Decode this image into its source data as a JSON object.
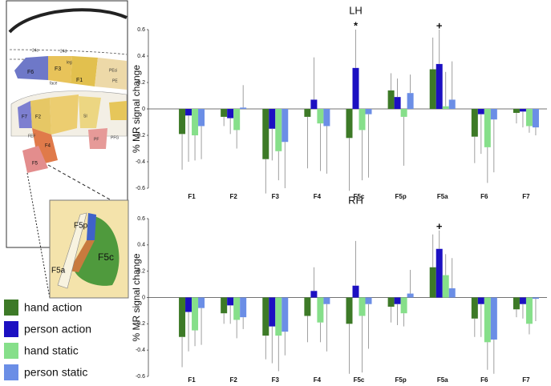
{
  "chart_data": [
    {
      "type": "bar",
      "title": "LH",
      "y_label": "% MR signal change",
      "categories": [
        "F1",
        "F2",
        "F3",
        "F4",
        "F5c",
        "F5p",
        "F5a",
        "F6",
        "F7"
      ],
      "ylim": [
        -0.6,
        0.6
      ],
      "yticks": [
        0.6,
        0.4,
        0.2,
        0,
        -0.2,
        -0.4,
        -0.6
      ],
      "series": [
        {
          "name": "hand action",
          "color": "#3d7a27",
          "values": [
            -0.19,
            -0.06,
            -0.38,
            -0.06,
            -0.22,
            0.14,
            0.3,
            -0.21,
            -0.03
          ],
          "errors": [
            0.27,
            0.07,
            0.26,
            0.39,
            0.4,
            0.13,
            0.24,
            0.2,
            0.08
          ]
        },
        {
          "name": "person action",
          "color": "#1c10c2",
          "values": [
            -0.05,
            -0.07,
            -0.15,
            0.07,
            0.31,
            0.09,
            0.34,
            -0.04,
            -0.02
          ],
          "errors": [
            0.35,
            0.12,
            0.24,
            0.32,
            0.29,
            0.14,
            0.26,
            0.3,
            0.12
          ]
        },
        {
          "name": "hand static",
          "color": "#86df8a",
          "values": [
            -0.2,
            -0.16,
            -0.32,
            -0.11,
            -0.16,
            -0.06,
            0.02,
            -0.29,
            -0.13
          ],
          "errors": [
            0.19,
            0.14,
            0.22,
            0.36,
            0.38,
            0.37,
            0.26,
            0.27,
            0.05
          ]
        },
        {
          "name": "person static",
          "color": "#6b8ee6",
          "values": [
            -0.13,
            0.01,
            -0.25,
            -0.13,
            -0.04,
            0.12,
            0.07,
            -0.08,
            -0.14
          ],
          "errors": [
            0.25,
            0.17,
            0.35,
            0.36,
            0.48,
            0.14,
            0.29,
            0.4,
            0.06
          ]
        }
      ],
      "annotations": [
        {
          "text": "*",
          "x": "F5c"
        },
        {
          "text": "+",
          "x": "F5a"
        }
      ]
    },
    {
      "type": "bar",
      "title": "RH",
      "y_label": "% MR signal change",
      "categories": [
        "F1",
        "F2",
        "F3",
        "F4",
        "F5c",
        "F5p",
        "F5a",
        "F6",
        "F7"
      ],
      "ylim": [
        -0.6,
        0.6
      ],
      "yticks": [
        0.6,
        0.4,
        0.2,
        0,
        -0.2,
        -0.4,
        -0.6
      ],
      "series": [
        {
          "name": "hand action",
          "color": "#3d7a27",
          "values": [
            -0.3,
            -0.12,
            -0.29,
            -0.14,
            -0.2,
            -0.07,
            0.23,
            -0.16,
            -0.09
          ],
          "errors": [
            0.23,
            0.08,
            0.18,
            0.2,
            0.38,
            0.12,
            0.25,
            0.14,
            0.06
          ]
        },
        {
          "name": "person action",
          "color": "#1c10c2",
          "values": [
            -0.11,
            -0.06,
            -0.22,
            0.05,
            0.09,
            -0.05,
            0.37,
            -0.05,
            -0.05
          ],
          "errors": [
            0.3,
            0.14,
            0.28,
            0.18,
            0.34,
            0.16,
            0.14,
            0.25,
            0.11
          ]
        },
        {
          "name": "hand static",
          "color": "#86df8a",
          "values": [
            -0.25,
            -0.17,
            -0.29,
            -0.19,
            -0.14,
            -0.12,
            0.17,
            -0.34,
            -0.2
          ],
          "errors": [
            0.12,
            0.14,
            0.27,
            0.15,
            0.43,
            0.1,
            0.16,
            0.21,
            0.08
          ]
        },
        {
          "name": "person static",
          "color": "#6b8ee6",
          "values": [
            -0.08,
            -0.15,
            -0.26,
            -0.05,
            -0.05,
            0.03,
            0.07,
            -0.32,
            -0.01
          ],
          "errors": [
            0.28,
            0.09,
            0.18,
            0.36,
            0.34,
            0.18,
            0.23,
            0.26,
            0.17
          ]
        }
      ],
      "annotations": [
        {
          "text": "+",
          "x": "F5a"
        }
      ]
    }
  ],
  "diagram": {
    "labels": [
      "24c",
      "24d",
      "F6",
      "F3",
      "F1",
      "PEci",
      "PE",
      "leg",
      "face",
      "F7",
      "F2",
      "F4",
      "F5",
      "FEF",
      "SI",
      "PF",
      "PFG",
      "F5p",
      "F5c",
      "F5a"
    ]
  }
}
